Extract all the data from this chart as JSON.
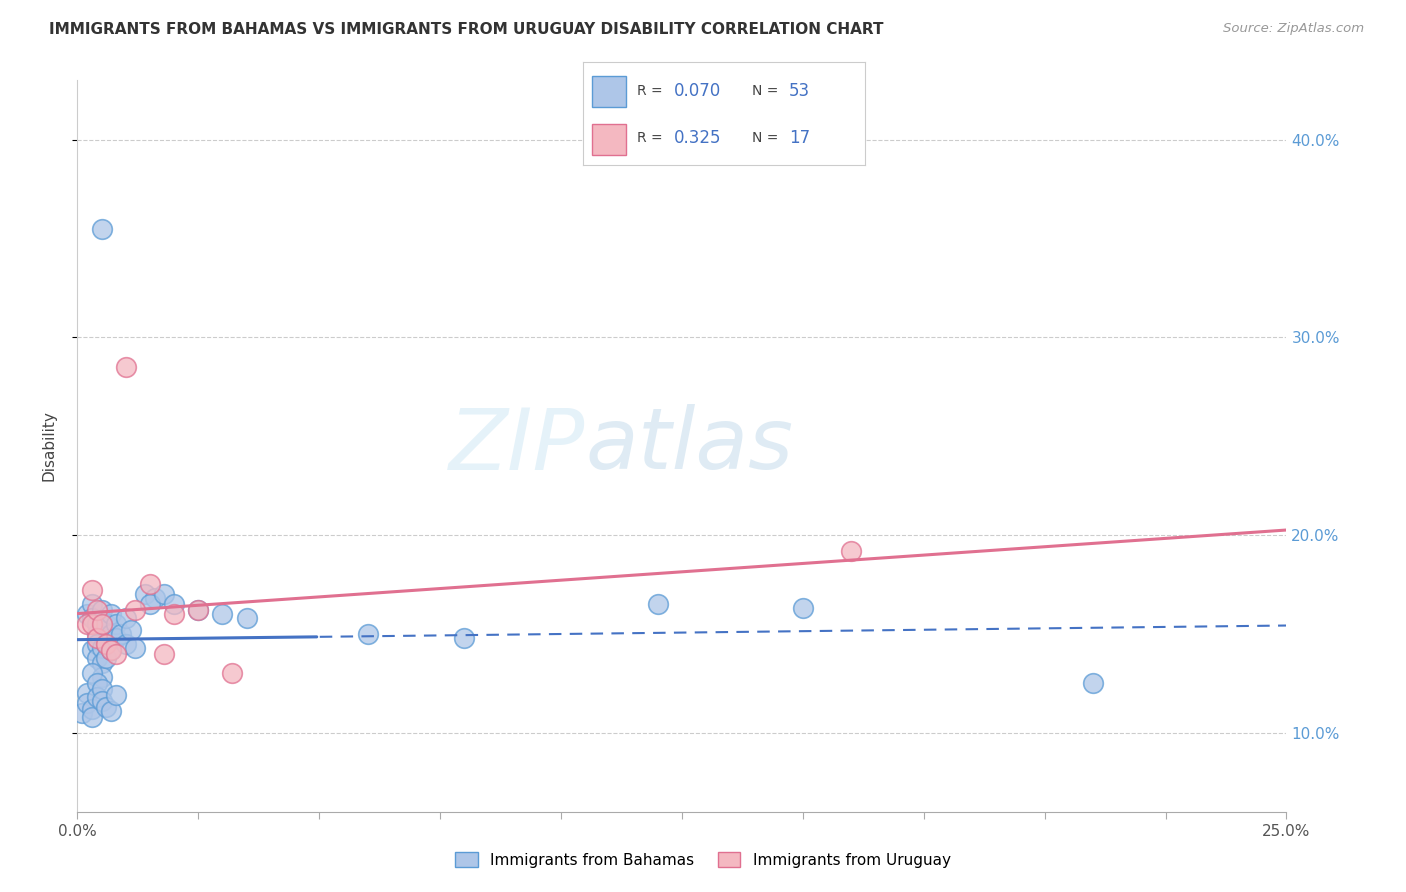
{
  "title": "IMMIGRANTS FROM BAHAMAS VS IMMIGRANTS FROM URUGUAY DISABILITY CORRELATION CHART",
  "source": "Source: ZipAtlas.com",
  "ylabel": "Disability",
  "bahamas_color": "#aec6e8",
  "bahamas_edge": "#5b9bd5",
  "uruguay_color": "#f4b8c1",
  "uruguay_edge": "#e07090",
  "trend_bahamas_color": "#4472c4",
  "trend_uruguay_color": "#e07090",
  "watermark_zip": "ZIP",
  "watermark_atlas": "atlas",
  "xlim": [
    0.0,
    0.25
  ],
  "ylim": [
    0.06,
    0.43
  ],
  "yticks": [
    0.1,
    0.2,
    0.3,
    0.4
  ],
  "legend_R1": "0.070",
  "legend_N1": "53",
  "legend_R2": "0.325",
  "legend_N2": "17",
  "bahamas_x": [
    0.002,
    0.003,
    0.003,
    0.003,
    0.004,
    0.004,
    0.004,
    0.004,
    0.005,
    0.005,
    0.005,
    0.005,
    0.005,
    0.006,
    0.006,
    0.006,
    0.007,
    0.007,
    0.007,
    0.008,
    0.008,
    0.009,
    0.01,
    0.01,
    0.011,
    0.012,
    0.001,
    0.002,
    0.002,
    0.003,
    0.003,
    0.003,
    0.004,
    0.004,
    0.005,
    0.005,
    0.006,
    0.007,
    0.008,
    0.014,
    0.016,
    0.015,
    0.018,
    0.02,
    0.025,
    0.03,
    0.035,
    0.06,
    0.08,
    0.12,
    0.15,
    0.21,
    0.005
  ],
  "bahamas_y": [
    0.16,
    0.165,
    0.158,
    0.142,
    0.155,
    0.15,
    0.145,
    0.138,
    0.162,
    0.157,
    0.143,
    0.135,
    0.128,
    0.155,
    0.145,
    0.138,
    0.16,
    0.15,
    0.142,
    0.155,
    0.148,
    0.15,
    0.158,
    0.145,
    0.152,
    0.143,
    0.11,
    0.12,
    0.115,
    0.112,
    0.108,
    0.13,
    0.125,
    0.118,
    0.122,
    0.116,
    0.113,
    0.111,
    0.119,
    0.17,
    0.168,
    0.165,
    0.17,
    0.165,
    0.162,
    0.16,
    0.158,
    0.15,
    0.148,
    0.165,
    0.163,
    0.125,
    0.355
  ],
  "uruguay_x": [
    0.002,
    0.003,
    0.003,
    0.004,
    0.004,
    0.005,
    0.006,
    0.007,
    0.008,
    0.01,
    0.012,
    0.015,
    0.018,
    0.02,
    0.025,
    0.16,
    0.032
  ],
  "uruguay_y": [
    0.155,
    0.172,
    0.155,
    0.162,
    0.148,
    0.155,
    0.145,
    0.142,
    0.14,
    0.285,
    0.162,
    0.175,
    0.14,
    0.16,
    0.162,
    0.192,
    0.13
  ]
}
